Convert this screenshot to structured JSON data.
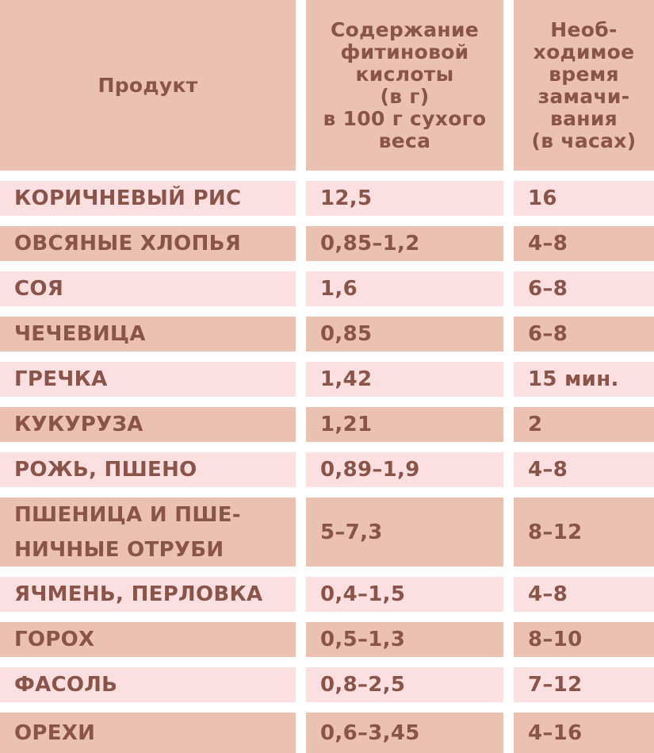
{
  "header": {
    "product": "Продукт",
    "phytic": "Содержание\nфитиновой\nкислоты\n(в г)\nв 100 г сухого\nвеса",
    "soak": "Необ-\nходимое\nвремя\nзамачи-\nвания\n(в часах)"
  },
  "colors": {
    "dark": "#ebc2b2",
    "light": "#fce0e1",
    "text": "#8a5448"
  },
  "rows": [
    {
      "product": "КОРИЧНЕВЫЙ РИС",
      "phytic": "12,5",
      "soak": "16"
    },
    {
      "product": "ОВСЯНЫЕ ХЛОПЬЯ",
      "phytic": "0,85–1,2",
      "soak": "4–8"
    },
    {
      "product": "СОЯ",
      "phytic": "1,6",
      "soak": "6–8"
    },
    {
      "product": "ЧЕЧЕВИЦА",
      "phytic": "0,85",
      "soak": "6–8"
    },
    {
      "product": "ГРЕЧКА",
      "phytic": "1,42",
      "soak": "15 мин."
    },
    {
      "product": "КУКУРУЗА",
      "phytic": "1,21",
      "soak": "2"
    },
    {
      "product": "РОЖЬ, ПШЕНО",
      "phytic": "0,89–1,9",
      "soak": "4–8"
    },
    {
      "product": "ПШЕНИЦА И ПШЕ-\nНИЧНЫЕ ОТРУБИ",
      "phytic": "5–7,3",
      "soak": "8–12"
    },
    {
      "product": "ЯЧМЕНЬ, ПЕРЛОВКА",
      "phytic": "0,4–1,5",
      "soak": "4–8"
    },
    {
      "product": "ГОРОХ",
      "phytic": "0,5–1,3",
      "soak": "8–10"
    },
    {
      "product": "ФАСОЛЬ",
      "phytic": "0,8–2,5",
      "soak": "7–12"
    },
    {
      "product": "ОРЕХИ",
      "phytic": "0,6–3,45",
      "soak": "4–16"
    }
  ]
}
